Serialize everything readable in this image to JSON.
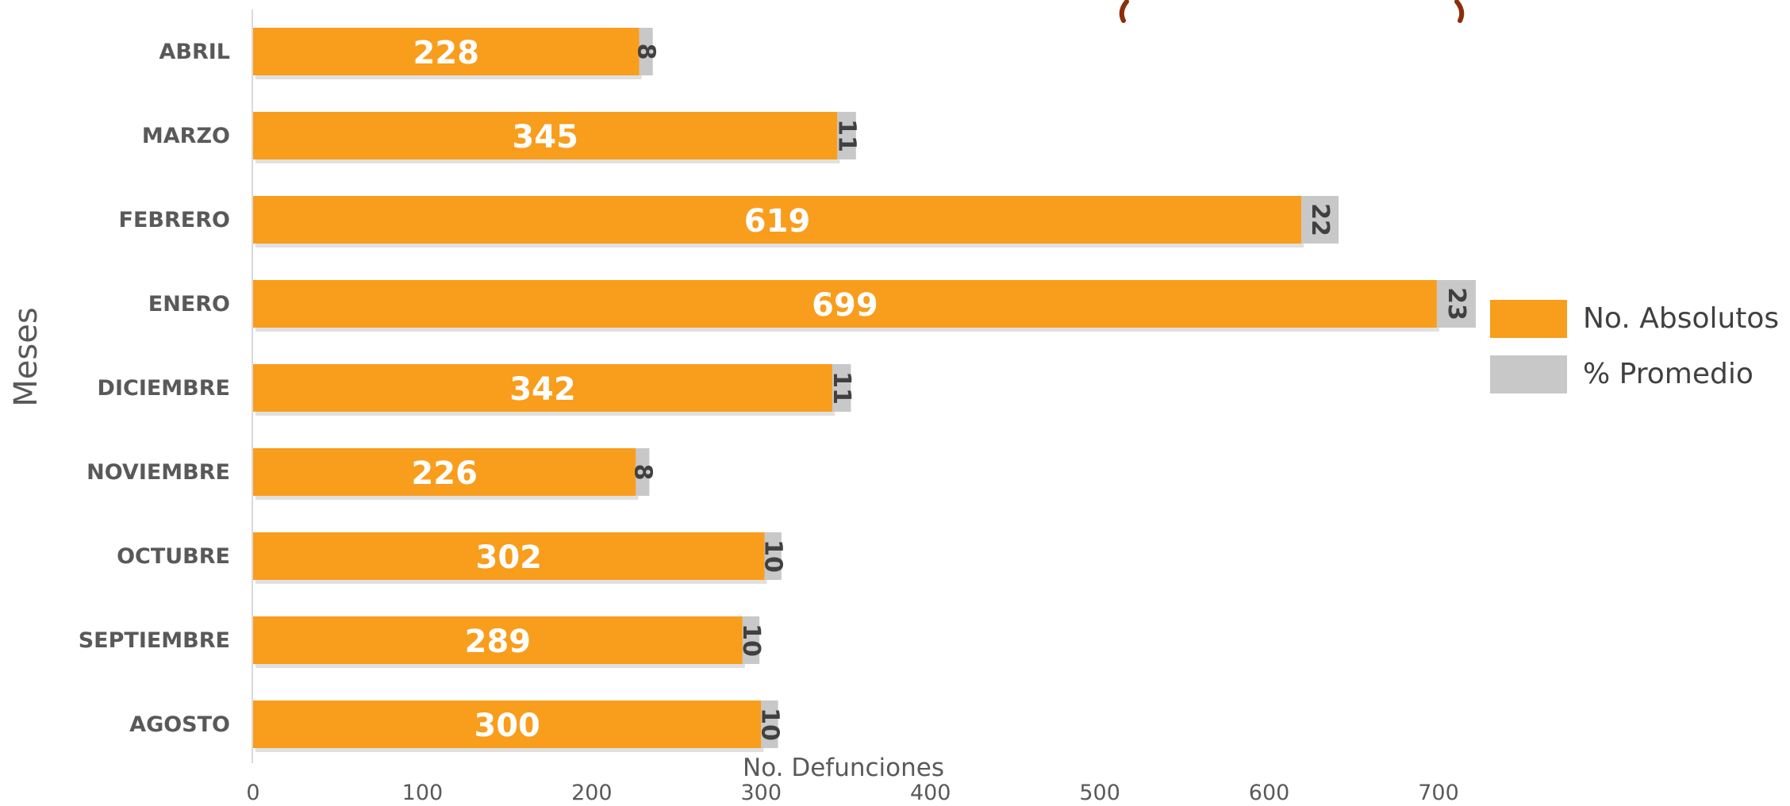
{
  "chart_data": {
    "type": "bar",
    "orientation": "horizontal",
    "stacked": true,
    "categories": [
      "ABRIL",
      "MARZO",
      "FEBRERO",
      "ENERO",
      "DICIEMBRE",
      "NOVIEMBRE",
      "OCTUBRE",
      "SEPTIEMBRE",
      "AGOSTO"
    ],
    "series": [
      {
        "name": "No. Absolutos",
        "color": "#F99D1C",
        "values": [
          228,
          345,
          619,
          699,
          342,
          226,
          302,
          289,
          300
        ]
      },
      {
        "name": "% Promedio",
        "color": "#C8C8C8",
        "values": [
          8,
          11,
          22,
          23,
          11,
          8,
          10,
          10,
          10
        ]
      }
    ],
    "xlabel": "No. Defunciones",
    "ylabel": "Meses",
    "xlim": [
      0,
      800
    ],
    "xticks": [
      "0",
      "100",
      "200",
      "300",
      "400",
      "500",
      "600",
      "700"
    ],
    "xtick_values": [
      0,
      100,
      200,
      300,
      400,
      500,
      600,
      700
    ],
    "grid": false,
    "legend_position": "right",
    "colors": {
      "axis_line": "#D9D9D9",
      "category_text": "#595959",
      "tick_text": "#595959",
      "value_label_primary": "#FFFFFF",
      "value_label_secondary": "#404040",
      "title_accent": "#8B2E0A"
    }
  }
}
